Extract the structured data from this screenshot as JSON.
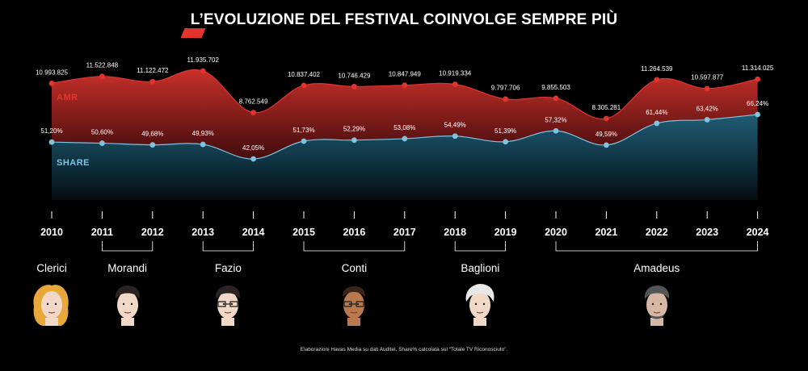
{
  "title": "L’EVOLUZIONE DEL FESTIVAL COINVOLGE SEMPRE PIÙ",
  "footnote": "Elaborazioni Havas Media su dati Auditel. Share% calcolata sul “Totale TV Riconosciuto”.",
  "colors": {
    "amr": "#e2342c",
    "share": "#7ec3df",
    "background": "#000000"
  },
  "chart_data": {
    "type": "area",
    "title": "L’EVOLUZIONE DEL FESTIVAL COINVOLGE SEMPRE PIÙ",
    "categories": [
      "2010",
      "2011",
      "2012",
      "2013",
      "2014",
      "2015",
      "2016",
      "2017",
      "2018",
      "2019",
      "2020",
      "2021",
      "2022",
      "2023",
      "2024"
    ],
    "series": [
      {
        "name": "AMR",
        "values": [
          10993825,
          11522848,
          11122472,
          11935702,
          8762549,
          10837402,
          10746429,
          10847949,
          10919334,
          9797706,
          9855503,
          8305281,
          11264539,
          10597877,
          11314025
        ],
        "labels": [
          "10.993.825",
          "11.522.848",
          "11.122.472",
          "11.935.702",
          "8.762.549",
          "10.837.402",
          "10.746.429",
          "10.847.949",
          "10.919.334",
          "9.797.706",
          "9.855.503",
          "8.305.281",
          "11.264.539",
          "10.597.877",
          "11.314.025"
        ]
      },
      {
        "name": "SHARE",
        "values": [
          51.2,
          50.6,
          49.68,
          49.93,
          42.05,
          51.73,
          52.29,
          53.08,
          54.49,
          51.39,
          57.32,
          49.59,
          61.44,
          63.42,
          66.24
        ],
        "labels": [
          "51,20%",
          "50,60%",
          "49,68%",
          "49,93%",
          "42,05%",
          "51,73%",
          "52,29%",
          "53,08%",
          "54,49%",
          "51,39%",
          "57,32%",
          "49,59%",
          "61,44%",
          "63,42%",
          "66,24%"
        ]
      }
    ],
    "hosts": [
      {
        "name": "Clerici",
        "from": "2010",
        "to": "2010",
        "hair": "blonde"
      },
      {
        "name": "Morandi",
        "from": "2011",
        "to": "2012",
        "hair": "dark"
      },
      {
        "name": "Fazio",
        "from": "2013",
        "to": "2014",
        "hair": "dark-glasses"
      },
      {
        "name": "Conti",
        "from": "2015",
        "to": "2017",
        "hair": "tan-glasses"
      },
      {
        "name": "Baglioni",
        "from": "2018",
        "to": "2019",
        "hair": "white"
      },
      {
        "name": "Amadeus",
        "from": "2020",
        "to": "2024",
        "hair": "grey"
      }
    ],
    "grid": false,
    "legend": "inline-labels"
  }
}
